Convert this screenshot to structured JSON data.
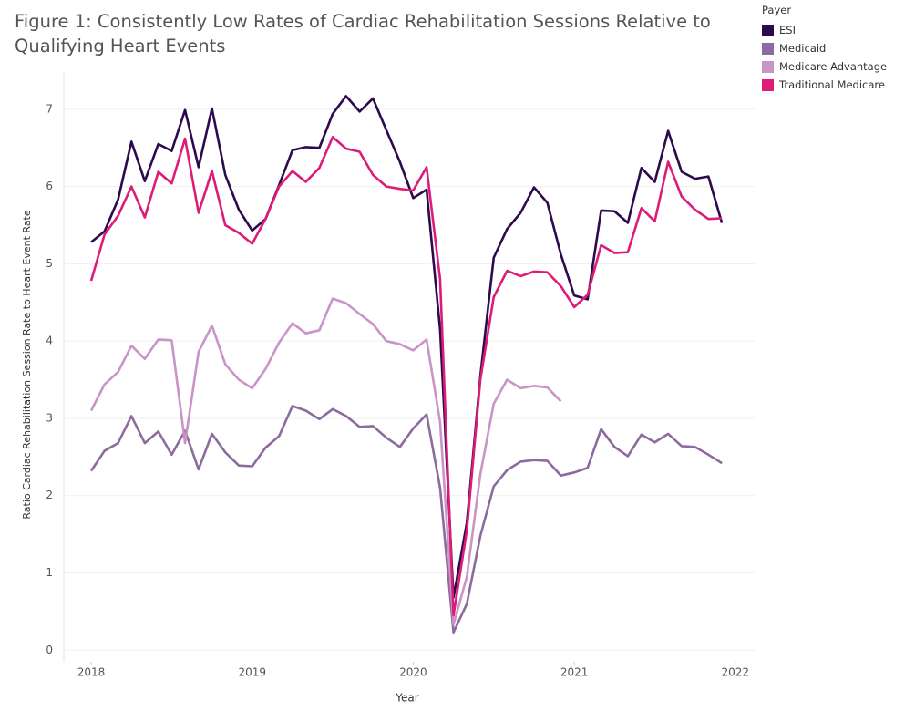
{
  "chart_data": {
    "type": "line",
    "title": "Figure 1: Consistently Low Rates of Cardiac Rehabilitation Sessions Relative to Qualifying Heart Events",
    "x_label": "Year",
    "y_label": "Ratio Cardiac Rehabilitation Session Rate to Heart Event Rate",
    "legend_title": "Payer",
    "legend_position": "top-right",
    "grid": true,
    "xlim": [
      2017.83,
      2022.12
    ],
    "xticks": [
      2018,
      2019,
      2020,
      2021,
      2022
    ],
    "ylim": [
      -0.15,
      7.47
    ],
    "yticks": [
      0,
      1,
      2,
      3,
      4,
      5,
      6,
      7
    ],
    "x": [
      2018.0,
      2018.083,
      2018.167,
      2018.25,
      2018.333,
      2018.417,
      2018.5,
      2018.583,
      2018.667,
      2018.75,
      2018.833,
      2018.917,
      2019.0,
      2019.083,
      2019.167,
      2019.25,
      2019.333,
      2019.417,
      2019.5,
      2019.583,
      2019.667,
      2019.75,
      2019.833,
      2019.917,
      2020.0,
      2020.083,
      2020.167,
      2020.25,
      2020.333,
      2020.417,
      2020.5,
      2020.583,
      2020.667,
      2020.75,
      2020.833,
      2020.917,
      2021.0,
      2021.083,
      2021.167,
      2021.25,
      2021.333,
      2021.417,
      2021.5,
      2021.583,
      2021.667,
      2021.75,
      2021.833,
      2021.917
    ],
    "series": [
      {
        "name": "ESI",
        "color": "#2d0a4e",
        "values": [
          5.28,
          5.42,
          5.83,
          6.58,
          6.07,
          6.55,
          6.46,
          6.99,
          6.25,
          7.01,
          6.15,
          5.7,
          5.43,
          5.58,
          6.02,
          6.47,
          6.51,
          6.5,
          6.94,
          7.17,
          6.97,
          7.14,
          6.73,
          6.32,
          5.85,
          5.96,
          4.15,
          0.68,
          1.65,
          3.55,
          5.08,
          5.45,
          5.66,
          5.99,
          5.79,
          5.12,
          4.59,
          4.54,
          5.69,
          5.68,
          5.53,
          6.24,
          6.06,
          6.72,
          6.19,
          6.1,
          6.13,
          5.53
        ]
      },
      {
        "name": "Medicaid",
        "color": "#8c6b9e",
        "values": [
          2.32,
          2.58,
          2.68,
          3.03,
          2.68,
          2.83,
          2.53,
          2.84,
          2.34,
          2.8,
          2.56,
          2.39,
          2.38,
          2.62,
          2.77,
          3.16,
          3.1,
          2.99,
          3.12,
          3.03,
          2.89,
          2.9,
          2.75,
          2.63,
          2.87,
          3.05,
          2.1,
          0.23,
          0.6,
          1.48,
          2.12,
          2.33,
          2.44,
          2.46,
          2.45,
          2.26,
          2.3,
          2.36,
          2.86,
          2.63,
          2.51,
          2.79,
          2.69,
          2.8,
          2.64,
          2.63,
          2.53,
          2.42
        ]
      },
      {
        "name": "Medicare Advantage",
        "color": "#c994c7",
        "values": [
          3.1,
          3.44,
          3.6,
          3.94,
          3.77,
          4.02,
          4.01,
          2.68,
          3.86,
          4.2,
          3.7,
          3.5,
          3.39,
          3.64,
          3.98,
          4.23,
          4.1,
          4.14,
          4.55,
          4.49,
          4.35,
          4.22,
          4.0,
          3.96,
          3.88,
          4.02,
          2.95,
          0.33,
          0.95,
          2.28,
          3.19,
          3.5,
          3.39,
          3.42,
          3.4,
          3.22,
          null,
          null,
          null,
          null,
          null,
          null,
          null,
          null,
          null,
          null,
          null,
          null
        ]
      },
      {
        "name": "Traditional Medicare",
        "color": "#dd1c77",
        "values": [
          4.78,
          5.38,
          5.62,
          6.0,
          5.6,
          6.19,
          6.04,
          6.62,
          5.66,
          6.2,
          5.5,
          5.4,
          5.26,
          5.58,
          6.0,
          6.2,
          6.06,
          6.24,
          6.64,
          6.49,
          6.45,
          6.15,
          6.0,
          5.97,
          5.95,
          6.25,
          4.8,
          0.45,
          1.55,
          3.5,
          4.57,
          4.91,
          4.84,
          4.9,
          4.89,
          4.71,
          4.44,
          4.6,
          5.24,
          5.14,
          5.15,
          5.72,
          5.55,
          6.32,
          5.87,
          5.7,
          5.58,
          5.59
        ]
      }
    ]
  }
}
